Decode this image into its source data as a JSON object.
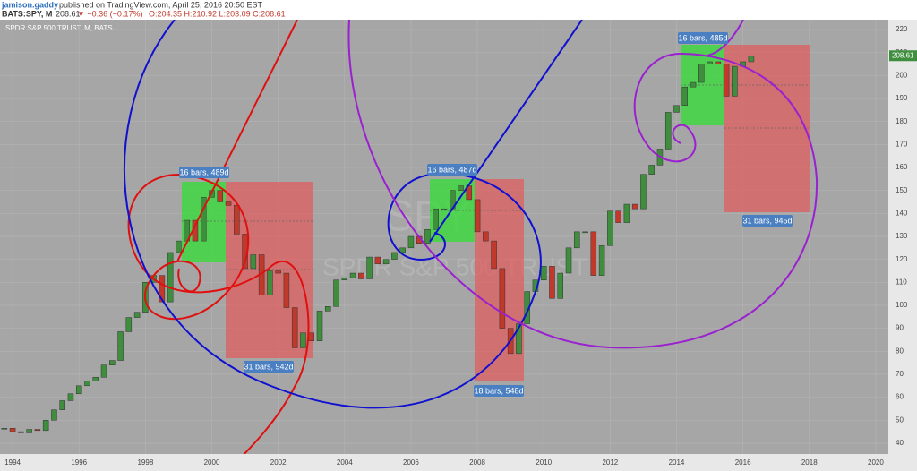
{
  "header": {
    "author": "jamison.gaddy",
    "published": "published on TradingView.com, April 25, 2016 20:50 EST",
    "symbol": "BATS:SPY, M",
    "last": "208.61",
    "change": "▼ −0.36 (−0.17%)",
    "ohlc": "O:204.35 H:210.92 L:203.09 C:208.61"
  },
  "chart_data": {
    "type": "candlestick",
    "title": "SPDR S&P 500 TRUST, M, BATS",
    "watermark": "SPY",
    "watermark_sub": "SPDR S&P 500 TRUST",
    "x": [
      1993.75,
      1994,
      1994.25,
      1994.5,
      1994.75,
      1995,
      1995.25,
      1995.5,
      1995.75,
      1996,
      1996.25,
      1996.5,
      1996.75,
      1997,
      1997.25,
      1997.5,
      1997.75,
      1998,
      1998.25,
      1998.5,
      1998.75,
      1999,
      1999.25,
      1999.5,
      1999.75,
      2000,
      2000.25,
      2000.5,
      2000.75,
      2001,
      2001.25,
      2001.5,
      2001.75,
      2002,
      2002.25,
      2002.5,
      2002.75,
      2003,
      2003.25,
      2003.5,
      2003.75,
      2004,
      2004.25,
      2004.5,
      2004.75,
      2005,
      2005.25,
      2005.5,
      2005.75,
      2006,
      2006.25,
      2006.5,
      2006.75,
      2007,
      2007.25,
      2007.5,
      2007.75,
      2008,
      2008.25,
      2008.5,
      2008.75,
      2009,
      2009.25,
      2009.5,
      2009.75,
      2010,
      2010.25,
      2010.5,
      2010.75,
      2011,
      2011.25,
      2011.5,
      2011.75,
      2012,
      2012.25,
      2012.5,
      2012.75,
      2013,
      2013.25,
      2013.5,
      2013.75,
      2014,
      2014.25,
      2014.5,
      2014.75,
      2015,
      2015.25,
      2015.5,
      2015.75,
      2016,
      2016.25
    ],
    "values": [
      46.5,
      45,
      44.5,
      46,
      45.5,
      50,
      54.5,
      58.5,
      61.5,
      65,
      67,
      68.7,
      74,
      76,
      88.5,
      94.7,
      97,
      110,
      113,
      101.5,
      123,
      128,
      137,
      128,
      147,
      150,
      145,
      143.5,
      131,
      116,
      122,
      104.5,
      115,
      114,
      99,
      81.5,
      88,
      84.5,
      97.5,
      99.5,
      111,
      112,
      114,
      111.5,
      121,
      118,
      120,
      123,
      125,
      130,
      127,
      133,
      142,
      142,
      150,
      152,
      146,
      132,
      128,
      116,
      90,
      79,
      92,
      106,
      111,
      117,
      103,
      114,
      125,
      132,
      132,
      113,
      126,
      141,
      136,
      144,
      142,
      157,
      161,
      168,
      184,
      187,
      195,
      197,
      205,
      206,
      205,
      191,
      204,
      206,
      208.6
    ],
    "up_color": "#3e8e3e",
    "down_color": "#c0392b",
    "xlim": [
      1993.62,
      2020.38
    ],
    "xticks": [
      1994,
      1996,
      1998,
      2000,
      2002,
      2004,
      2006,
      2008,
      2010,
      2012,
      2014,
      2016,
      2018,
      2020
    ],
    "ylim": [
      35.3,
      224.3
    ],
    "yticks": [
      40,
      50,
      60,
      70,
      80,
      90,
      100,
      110,
      120,
      130,
      140,
      150,
      160,
      170,
      180,
      190,
      200,
      210,
      220
    ],
    "price_label": 208.61,
    "annotations": [
      "16 bars, 489d",
      "31 bars, 942d",
      "16 bars, 487d",
      "18 bars, 548d",
      "16 bars, 485d",
      "31 bars, 945d"
    ]
  }
}
